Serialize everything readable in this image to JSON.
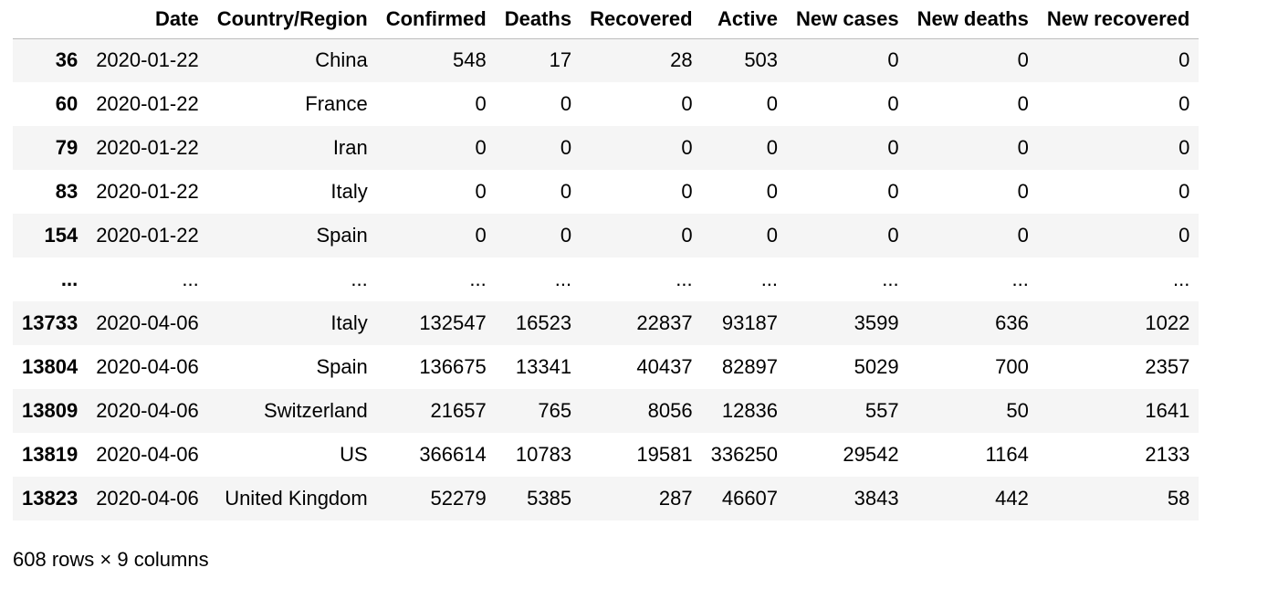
{
  "table": {
    "columns": [
      "",
      "Date",
      "Country/Region",
      "Confirmed",
      "Deaths",
      "Recovered",
      "Active",
      "New cases",
      "New deaths",
      "New recovered"
    ],
    "rows": [
      [
        "36",
        "2020-01-22",
        "China",
        "548",
        "17",
        "28",
        "503",
        "0",
        "0",
        "0"
      ],
      [
        "60",
        "2020-01-22",
        "France",
        "0",
        "0",
        "0",
        "0",
        "0",
        "0",
        "0"
      ],
      [
        "79",
        "2020-01-22",
        "Iran",
        "0",
        "0",
        "0",
        "0",
        "0",
        "0",
        "0"
      ],
      [
        "83",
        "2020-01-22",
        "Italy",
        "0",
        "0",
        "0",
        "0",
        "0",
        "0",
        "0"
      ],
      [
        "154",
        "2020-01-22",
        "Spain",
        "0",
        "0",
        "0",
        "0",
        "0",
        "0",
        "0"
      ],
      [
        "...",
        "...",
        "...",
        "...",
        "...",
        "...",
        "...",
        "...",
        "...",
        "..."
      ],
      [
        "13733",
        "2020-04-06",
        "Italy",
        "132547",
        "16523",
        "22837",
        "93187",
        "3599",
        "636",
        "1022"
      ],
      [
        "13804",
        "2020-04-06",
        "Spain",
        "136675",
        "13341",
        "40437",
        "82897",
        "5029",
        "700",
        "2357"
      ],
      [
        "13809",
        "2020-04-06",
        "Switzerland",
        "21657",
        "765",
        "8056",
        "12836",
        "557",
        "50",
        "1641"
      ],
      [
        "13819",
        "2020-04-06",
        "US",
        "366614",
        "10783",
        "19581",
        "336250",
        "29542",
        "1164",
        "2133"
      ],
      [
        "13823",
        "2020-04-06",
        "United Kingdom",
        "52279",
        "5385",
        "287",
        "46607",
        "3843",
        "442",
        "58"
      ]
    ]
  },
  "summary": "608 rows × 9 columns"
}
